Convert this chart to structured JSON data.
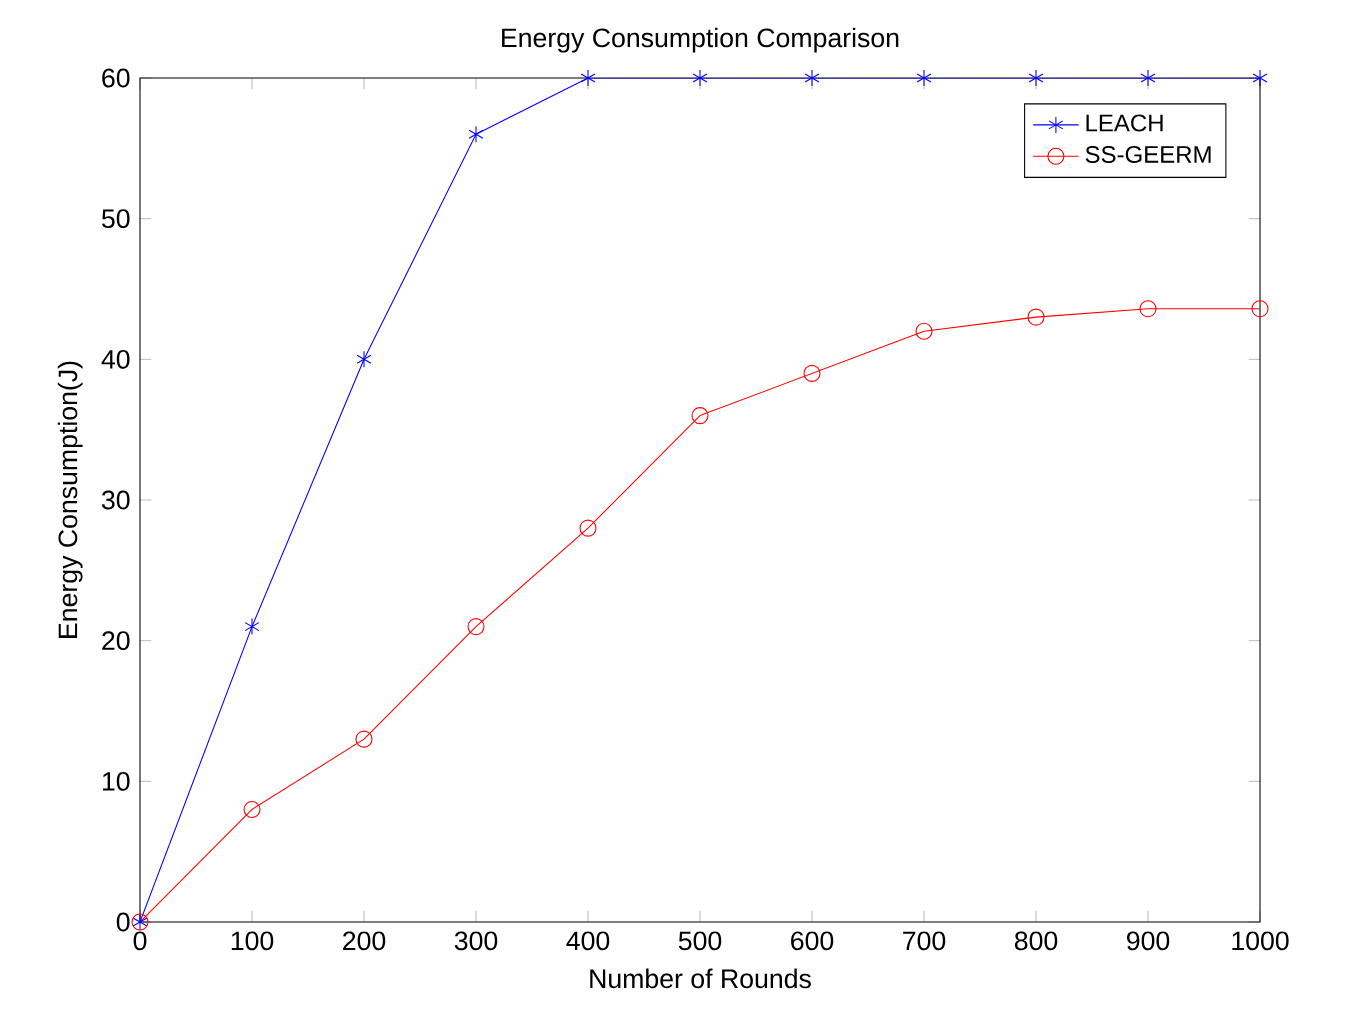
{
  "chart_data": {
    "type": "line",
    "title": "Energy Consumption Comparison",
    "xlabel": "Number of Rounds",
    "ylabel": "Energy Consumption(J)",
    "x": [
      0,
      100,
      200,
      300,
      400,
      500,
      600,
      700,
      800,
      900,
      1000
    ],
    "series": [
      {
        "name": "LEACH",
        "color": "#0000ff",
        "marker": "cross",
        "values": [
          0,
          21,
          40,
          56,
          60,
          60,
          60,
          60,
          60,
          60,
          60
        ]
      },
      {
        "name": "SS-GEERM",
        "color": "#ff0000",
        "marker": "circle",
        "values": [
          0,
          8,
          13,
          21,
          28,
          36,
          39,
          42,
          43,
          43.6,
          43.6
        ]
      }
    ],
    "xlim": [
      0,
      1000
    ],
    "ylim": [
      0,
      60
    ],
    "xticks": [
      0,
      100,
      200,
      300,
      400,
      500,
      600,
      700,
      800,
      900,
      1000
    ],
    "yticks": [
      0,
      10,
      20,
      30,
      40,
      50,
      60
    ],
    "grid": false,
    "legend": "top right",
    "line_style": "solid"
  }
}
